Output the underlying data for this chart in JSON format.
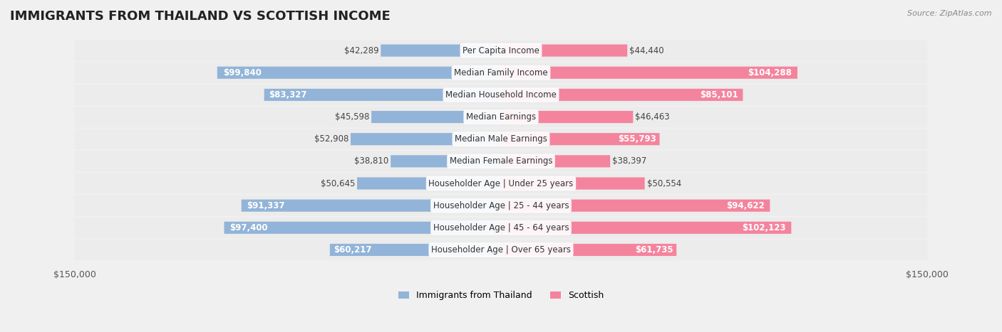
{
  "title": "IMMIGRANTS FROM THAILAND VS SCOTTISH INCOME",
  "source": "Source: ZipAtlas.com",
  "categories": [
    "Per Capita Income",
    "Median Family Income",
    "Median Household Income",
    "Median Earnings",
    "Median Male Earnings",
    "Median Female Earnings",
    "Householder Age | Under 25 years",
    "Householder Age | 25 - 44 years",
    "Householder Age | 45 - 64 years",
    "Householder Age | Over 65 years"
  ],
  "thailand_values": [
    42289,
    99840,
    83327,
    45598,
    52908,
    38810,
    50645,
    91337,
    97400,
    60217
  ],
  "scottish_values": [
    44440,
    104288,
    85101,
    46463,
    55793,
    38397,
    50554,
    94622,
    102123,
    61735
  ],
  "thailand_labels": [
    "$42,289",
    "$99,840",
    "$83,327",
    "$45,598",
    "$52,908",
    "$38,810",
    "$50,645",
    "$91,337",
    "$97,400",
    "$60,217"
  ],
  "scottish_labels": [
    "$44,440",
    "$104,288",
    "$85,101",
    "$46,463",
    "$55,793",
    "$38,397",
    "$50,554",
    "$94,622",
    "$102,123",
    "$61,735"
  ],
  "max_val": 150000,
  "thailand_color": "#92b4d8",
  "scottish_color": "#f4849e",
  "thailand_color_dark": "#5b8fc7",
  "scottish_color_dark": "#f06080",
  "bg_color": "#f0f0f0",
  "row_bg": "#f8f8f8",
  "label_box_color": "#ffffff",
  "bar_height": 0.55,
  "title_fontsize": 13,
  "axis_label_fontsize": 9,
  "value_fontsize": 8.5,
  "cat_fontsize": 8.5,
  "legend_fontsize": 9
}
